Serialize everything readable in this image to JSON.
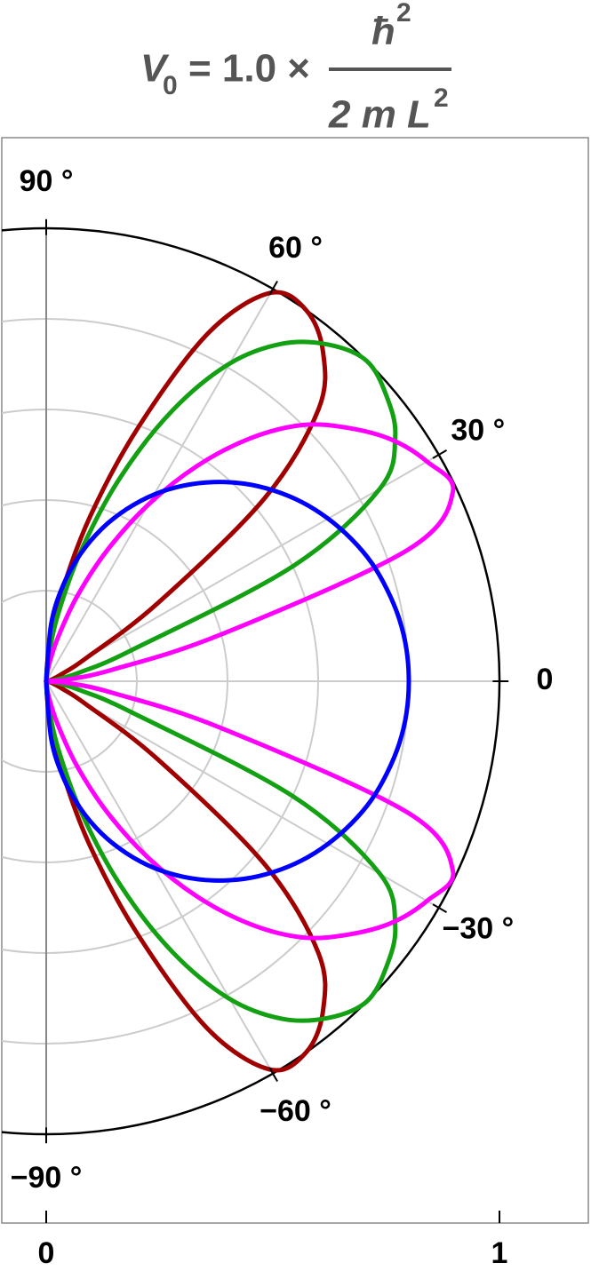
{
  "chart_data": {
    "type": "polar",
    "title": {
      "lhs": "V",
      "lhs_sub": "0",
      "middle": "= 1.0 ×",
      "numerator": "ħ",
      "numerator_sup": "2",
      "denominator": "2 m L",
      "denominator_sup": "2"
    },
    "theta": [
      -90,
      -85,
      -80,
      -75,
      -70,
      -65,
      -60,
      -55,
      -50,
      -45,
      -40,
      -35,
      -30,
      -25,
      -20,
      -15,
      -10,
      -5,
      0,
      5,
      10,
      15,
      20,
      25,
      30,
      35,
      40,
      45,
      50,
      55,
      60,
      65,
      70,
      75,
      80,
      85,
      90
    ],
    "series": [
      {
        "color": "#a00000",
        "values": [
          0,
          0.07,
          0.2,
          0.38,
          0.6,
          0.85,
          0.99,
          1.0,
          0.95,
          0.85,
          0.63,
          0.3,
          0.1,
          0.04,
          0.02,
          0.01,
          0,
          0,
          0,
          0,
          0,
          0.01,
          0.02,
          0.04,
          0.1,
          0.3,
          0.63,
          0.85,
          0.95,
          1.0,
          0.99,
          0.85,
          0.6,
          0.38,
          0.2,
          0.07,
          0
        ]
      },
      {
        "color": "#13a013",
        "values": [
          0,
          0.05,
          0.15,
          0.3,
          0.48,
          0.66,
          0.81,
          0.91,
          0.97,
          1.0,
          0.98,
          0.94,
          0.85,
          0.6,
          0.2,
          0.08,
          0.03,
          0.01,
          0,
          0.01,
          0.03,
          0.08,
          0.2,
          0.6,
          0.85,
          0.94,
          0.98,
          1.0,
          0.97,
          0.91,
          0.81,
          0.66,
          0.48,
          0.3,
          0.15,
          0.05,
          0
        ]
      },
      {
        "color": "#ff00ff",
        "values": [
          0,
          0.01,
          0.04,
          0.1,
          0.2,
          0.32,
          0.45,
          0.58,
          0.7,
          0.8,
          0.87,
          0.93,
          0.97,
          0.99,
          0.85,
          0.4,
          0.15,
          0.05,
          0,
          0.05,
          0.15,
          0.4,
          0.85,
          0.99,
          0.97,
          0.93,
          0.87,
          0.8,
          0.7,
          0.58,
          0.45,
          0.32,
          0.2,
          0.1,
          0.04,
          0.01,
          0
        ]
      },
      {
        "color": "#0000ff",
        "values": [
          0,
          0.128,
          0.215,
          0.29,
          0.358,
          0.419,
          0.476,
          0.527,
          0.574,
          0.617,
          0.655,
          0.689,
          0.718,
          0.743,
          0.764,
          0.779,
          0.791,
          0.798,
          0.8,
          0.798,
          0.791,
          0.779,
          0.764,
          0.743,
          0.718,
          0.689,
          0.655,
          0.617,
          0.574,
          0.527,
          0.476,
          0.419,
          0.358,
          0.29,
          0.215,
          0.128,
          0
        ]
      }
    ],
    "thetaticks": [
      {
        "value": 90,
        "label": "90 °"
      },
      {
        "value": 60,
        "label": "60 °"
      },
      {
        "value": 30,
        "label": "30 °"
      },
      0,
      {
        "value": -30,
        "label": "−30 °"
      },
      {
        "value": -60,
        "label": "−60 °"
      },
      {
        "value": -90,
        "label": "−90 °"
      }
    ],
    "rlim": [
      0,
      1
    ],
    "rticks": [
      0,
      1
    ],
    "rgrid": [
      0.2,
      0.4,
      0.6,
      0.8
    ]
  }
}
